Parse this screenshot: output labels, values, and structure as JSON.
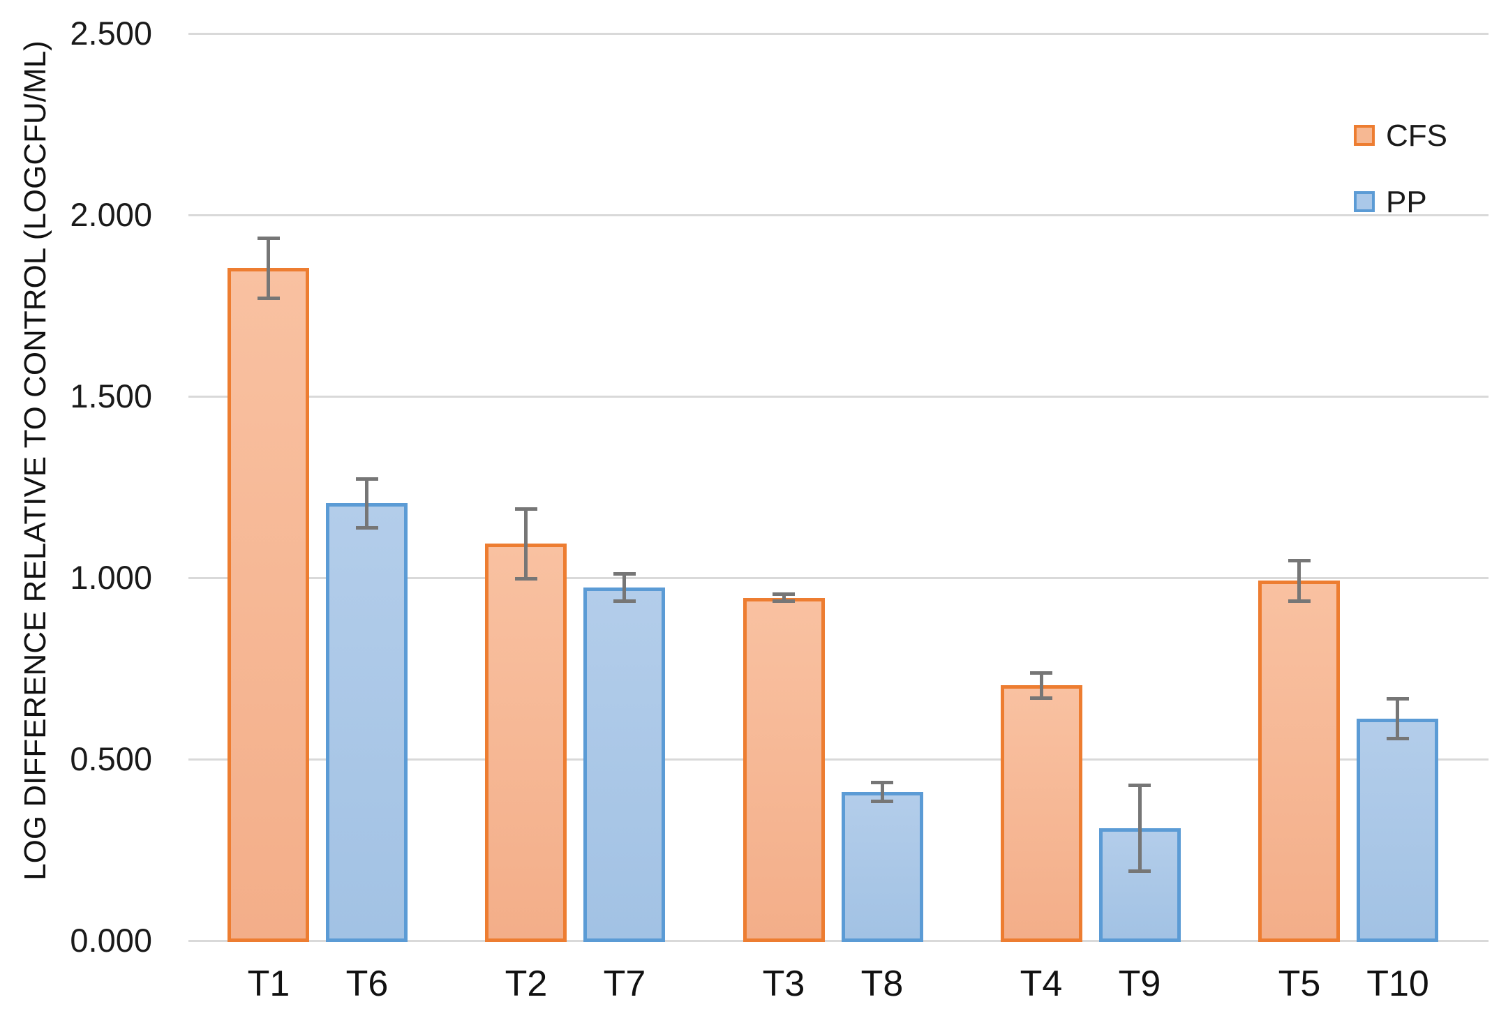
{
  "chart_data": {
    "type": "bar",
    "title": "",
    "xlabel": "",
    "ylabel": "LOG DIFFERENCE RELATIVE TO CONTROL (LOGCFU/ML)",
    "ylim": [
      0.0,
      2.5
    ],
    "ytick_step": 0.5,
    "ytick_labels": [
      "0.000",
      "0.500",
      "1.000",
      "1.500",
      "2.000",
      "2.500"
    ],
    "grid": true,
    "legend_position": "top-right",
    "gridline_color": "#D9D9D9",
    "error_bar_color": "#767676",
    "series": [
      {
        "name": "CFS",
        "border_color": "#ED7D31",
        "fill_color": "#F6B893"
      },
      {
        "name": "PP",
        "border_color": "#5B9BD5",
        "fill_color": "#AAC8E9"
      }
    ],
    "bars": [
      {
        "label": "T1",
        "series": "CFS",
        "value": 1.853,
        "error": 0.082
      },
      {
        "label": "T6",
        "series": "PP",
        "value": 1.205,
        "error": 0.068
      },
      {
        "label": "T2",
        "series": "CFS",
        "value": 1.094,
        "error": 0.096
      },
      {
        "label": "T7",
        "series": "PP",
        "value": 0.973,
        "error": 0.037
      },
      {
        "label": "T3",
        "series": "CFS",
        "value": 0.945,
        "error": 0.01
      },
      {
        "label": "T8",
        "series": "PP",
        "value": 0.41,
        "error": 0.026
      },
      {
        "label": "T4",
        "series": "CFS",
        "value": 0.703,
        "error": 0.034
      },
      {
        "label": "T9",
        "series": "PP",
        "value": 0.31,
        "error": 0.118
      },
      {
        "label": "T5",
        "series": "CFS",
        "value": 0.992,
        "error": 0.056
      },
      {
        "label": "T10",
        "series": "PP",
        "value": 0.612,
        "error": 0.055
      }
    ]
  }
}
